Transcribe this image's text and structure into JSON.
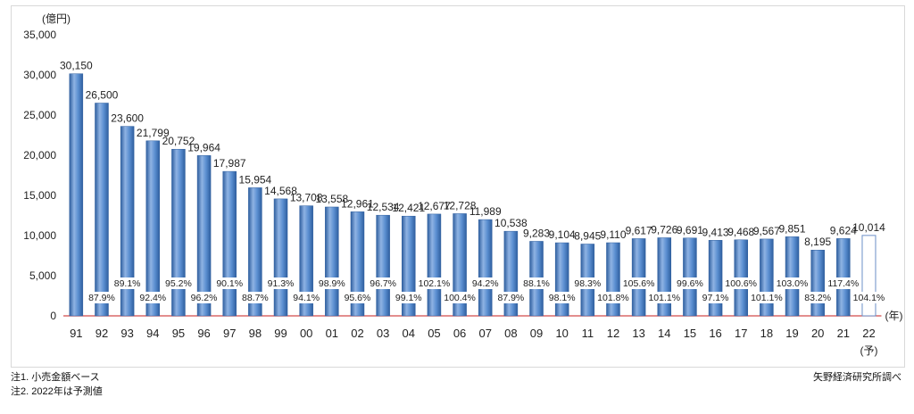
{
  "chart_data": {
    "type": "bar",
    "y_unit_label": "(億円)",
    "x_unit_label": "(年)",
    "categories": [
      "91",
      "92",
      "93",
      "94",
      "95",
      "96",
      "97",
      "98",
      "99",
      "00",
      "01",
      "02",
      "03",
      "04",
      "05",
      "06",
      "07",
      "08",
      "09",
      "10",
      "11",
      "12",
      "13",
      "14",
      "15",
      "16",
      "17",
      "18",
      "19",
      "20",
      "21",
      "22"
    ],
    "forecast_suffix": "(予)",
    "values": [
      30150,
      26500,
      23600,
      21799,
      20752,
      19964,
      17987,
      15954,
      14568,
      13708,
      13558,
      12961,
      12534,
      12421,
      12677,
      12728,
      11989,
      10538,
      9283,
      9104,
      8945,
      9110,
      9617,
      9726,
      9691,
      9413,
      9468,
      9567,
      9851,
      8195,
      9624,
      10014
    ],
    "value_labels": [
      "30,150",
      "26,500",
      "23,600",
      "21,799",
      "20,752",
      "19,964",
      "17,987",
      "15,954",
      "14,568",
      "13,708",
      "13,558",
      "12,961",
      "12,534",
      "12,421",
      "12,677",
      "12,728",
      "11,989",
      "10,538",
      "9,283",
      "9,104",
      "8,945",
      "9,110",
      "9,617",
      "9,726",
      "9,691",
      "9,413",
      "9,468",
      "9,567",
      "9,851",
      "8,195",
      "9,624",
      "10,014"
    ],
    "yoy_labels": [
      null,
      "87.9%",
      "89.1%",
      "92.4%",
      "95.2%",
      "96.2%",
      "90.1%",
      "88.7%",
      "91.3%",
      "94.1%",
      "98.9%",
      "95.6%",
      "96.7%",
      "99.1%",
      "102.1%",
      "100.4%",
      "94.2%",
      "87.9%",
      "88.1%",
      "98.1%",
      "98.3%",
      "101.8%",
      "105.6%",
      "101.1%",
      "99.6%",
      "97.1%",
      "100.6%",
      "101.1%",
      "103.0%",
      "83.2%",
      "117.4%",
      "104.1%"
    ],
    "forecast_index": 31,
    "ylim": [
      0,
      35000
    ],
    "yticks": [
      0,
      5000,
      10000,
      15000,
      20000,
      25000,
      30000,
      35000
    ],
    "ytick_labels": [
      "0",
      "5,000",
      "10,000",
      "15,000",
      "20,000",
      "25,000",
      "30,000",
      "35,000"
    ],
    "grid": false,
    "colors": {
      "bar": "#4a7dc4",
      "bar_light": "#8fb3e3",
      "bar_dark": "#2f5f9f",
      "forecast_border": "#6b8fc7",
      "baseline": "#d24a4a"
    }
  },
  "notes": {
    "note1": "注1. 小売金額ベース",
    "note2": "注2. 2022年は予測値",
    "source": "矢野経済研究所調べ"
  }
}
